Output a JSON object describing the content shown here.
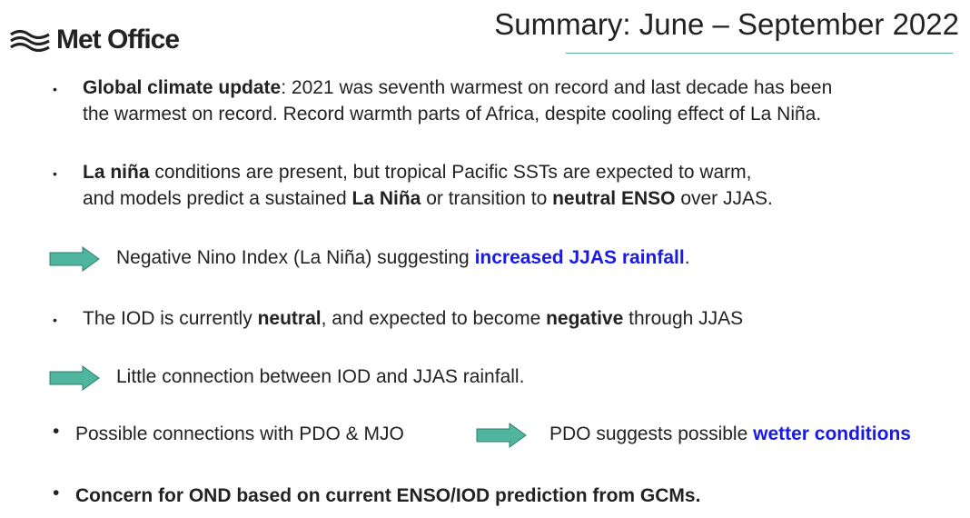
{
  "logo": {
    "text": "Met Office"
  },
  "title": "Summary: June – September 2022",
  "colors": {
    "arrow": "#4fb59e",
    "highlight": "#1a1ae6",
    "rule": "#5fae9b"
  },
  "bullets": {
    "b1": {
      "bold": "Global climate update",
      "rest1": ": 2021 was seventh warmest on record and last decade has been",
      "line2": "the warmest on record. Record warmth parts of Africa, despite cooling effect of La Niña."
    },
    "b2": {
      "bold1": "La niña",
      "rest1": " conditions are present, but tropical Pacific SSTs are expected to warm,",
      "line2a": "and models predict a sustained ",
      "bold2": "La Niña",
      "line2b": " or transition to ",
      "bold3": "neutral ENSO",
      "line2c": " over JJAS."
    },
    "a1": {
      "text": "Negative Nino Index (La Niña) suggesting ",
      "highlight": "increased JJAS rainfall",
      "end": "."
    },
    "b3": {
      "t1": "The IOD is currently ",
      "bold1": "neutral",
      "t2": ", and expected to become ",
      "bold2": "negative",
      "t3": " through JJAS"
    },
    "a2": {
      "text": "Little connection between IOD and JJAS rainfall."
    },
    "b4": {
      "text": "Possible connections with PDO & MJO",
      "result": "PDO suggests possible ",
      "highlight": "wetter conditions"
    },
    "b5": {
      "text": "Concern for OND based on current ENSO/IOD prediction from GCMs."
    }
  }
}
